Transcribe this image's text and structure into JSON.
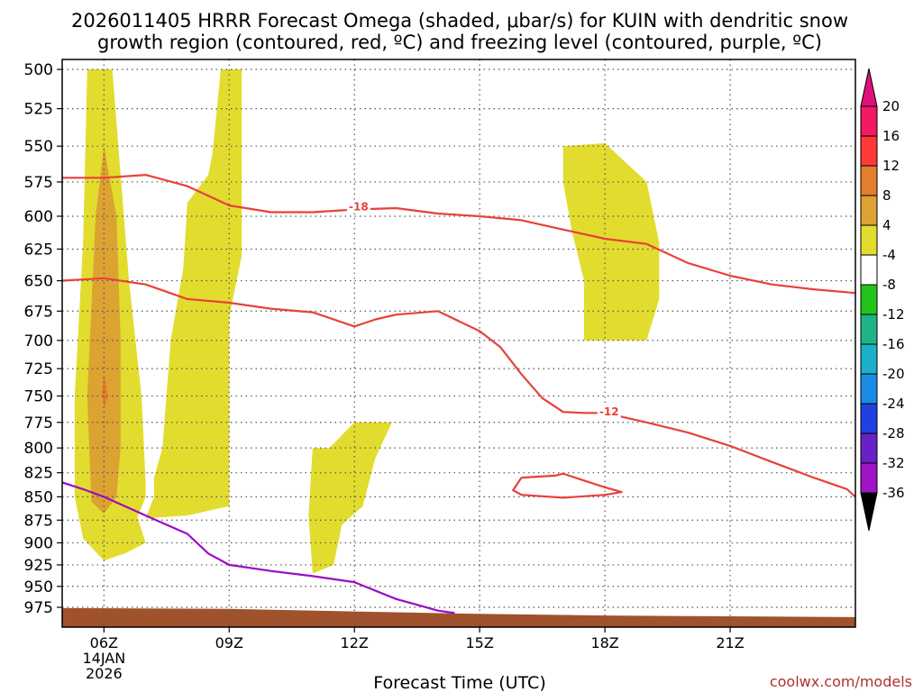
{
  "title": {
    "line1": "2026011405 HRRR Forecast Omega (shaded, μbar/s) for KUIN with dendritic snow",
    "line2": "growth region (contoured, red, ºC) and freezing level (contoured, purple, ºC)"
  },
  "credit": "coolwx.com/models",
  "colors": {
    "omega_4_8": "#e2dc2e",
    "omega_8_12": "#dca232",
    "omega_12_16": "#e47d2c",
    "dgz_contour": "#e8413a",
    "freezing_level": "#9a0ac8",
    "terrain": "#a0522d",
    "grid": "#555555"
  },
  "chart_data": {
    "type": "cross-section",
    "xlabel": "Forecast Time (UTC)",
    "ylabel": "",
    "x_domain_hours": [
      5,
      24
    ],
    "ylim_hpa": [
      500,
      988
    ],
    "y_scale": "log-pressure",
    "y_ticks": [
      500,
      525,
      550,
      575,
      600,
      625,
      650,
      675,
      700,
      725,
      750,
      775,
      800,
      825,
      850,
      875,
      900,
      925,
      950,
      975
    ],
    "x_ticks": [
      {
        "hour": 6,
        "label": "06Z",
        "sub1": "14JAN",
        "sub2": "2026"
      },
      {
        "hour": 9,
        "label": "09Z"
      },
      {
        "hour": 12,
        "label": "12Z"
      },
      {
        "hour": 15,
        "label": "15Z"
      },
      {
        "hour": 18,
        "label": "18Z"
      },
      {
        "hour": 21,
        "label": "21Z"
      }
    ],
    "grid": "dotted",
    "shaded_regions": [
      {
        "name": "omega 4-8 core-left",
        "level": "omega_4_8",
        "points": [
          [
            5.6,
            500
          ],
          [
            6.2,
            500
          ],
          [
            6.6,
            650
          ],
          [
            6.9,
            750
          ],
          [
            7.0,
            835
          ],
          [
            7.0,
            850
          ],
          [
            6.8,
            872
          ],
          [
            7.0,
            900
          ],
          [
            6.5,
            912
          ],
          [
            6.0,
            920
          ],
          [
            5.5,
            895
          ],
          [
            5.3,
            850
          ],
          [
            5.3,
            750
          ],
          [
            5.5,
            620
          ],
          [
            5.6,
            500
          ]
        ]
      },
      {
        "name": "omega 4-8 right-tower",
        "level": "omega_4_8",
        "points": [
          [
            8.8,
            500
          ],
          [
            9.3,
            500
          ],
          [
            9.3,
            630
          ],
          [
            9.0,
            680
          ],
          [
            9.0,
            860
          ],
          [
            8.0,
            870
          ],
          [
            7.0,
            873
          ],
          [
            7.2,
            850
          ],
          [
            7.2,
            830
          ],
          [
            7.4,
            800
          ],
          [
            7.6,
            700
          ],
          [
            7.9,
            640
          ],
          [
            8.0,
            590
          ],
          [
            8.5,
            570
          ],
          [
            8.6,
            555
          ],
          [
            8.8,
            500
          ]
        ]
      },
      {
        "name": "omega 8-12",
        "level": "omega_8_12",
        "points": [
          [
            6.0,
            550
          ],
          [
            6.3,
            600
          ],
          [
            6.4,
            700
          ],
          [
            6.4,
            800
          ],
          [
            6.3,
            850
          ],
          [
            6.0,
            868
          ],
          [
            5.7,
            855
          ],
          [
            5.6,
            750
          ],
          [
            5.8,
            600
          ],
          [
            6.0,
            550
          ]
        ]
      },
      {
        "name": "omega 12-16",
        "level": "omega_12_16",
        "points": [
          [
            6.0,
            730
          ],
          [
            6.1,
            750
          ],
          [
            6.0,
            762
          ],
          [
            5.95,
            745
          ],
          [
            6.0,
            730
          ]
        ]
      },
      {
        "name": "omega 4-8 mid",
        "level": "omega_4_8",
        "points": [
          [
            11.4,
            800
          ],
          [
            12.0,
            775
          ],
          [
            12.3,
            775
          ],
          [
            12.9,
            775
          ],
          [
            12.5,
            810
          ],
          [
            12.2,
            860
          ],
          [
            11.7,
            880
          ],
          [
            11.5,
            925
          ],
          [
            11.0,
            935
          ],
          [
            10.9,
            870
          ],
          [
            11.0,
            800
          ],
          [
            11.4,
            800
          ]
        ]
      },
      {
        "name": "omega 4-8 right",
        "level": "omega_4_8",
        "points": [
          [
            17.0,
            550
          ],
          [
            18.0,
            548
          ],
          [
            19.0,
            575
          ],
          [
            19.3,
            620
          ],
          [
            19.3,
            665
          ],
          [
            19.0,
            700
          ],
          [
            17.5,
            700
          ],
          [
            17.5,
            650
          ],
          [
            17.2,
            610
          ],
          [
            17.0,
            575
          ],
          [
            17.0,
            550
          ]
        ]
      }
    ],
    "series": [
      {
        "kind": "contour",
        "style": "dgz",
        "label": "-18",
        "label_at": [
          12.1,
          593
        ],
        "x": [
          5.0,
          6.0,
          7.0,
          8.0,
          9.0,
          10.0,
          11.0,
          12.0,
          13.0,
          14.0,
          15.0,
          16.0,
          17.0,
          18.0,
          19.0,
          20.0,
          21.0,
          22.0,
          23.0,
          24.0
        ],
        "y": [
          572,
          572,
          570,
          578,
          592,
          597,
          597,
          595,
          594,
          598,
          600,
          603,
          610,
          617,
          621,
          636,
          646,
          653,
          657,
          660
        ]
      },
      {
        "kind": "contour",
        "style": "dgz",
        "label": "-12",
        "label_at": [
          18.1,
          765
        ],
        "x": [
          5.0,
          6.0,
          7.0,
          8.0,
          9.0,
          10.0,
          11.0,
          12.0,
          12.5,
          13.0,
          14.0,
          15.0,
          15.5,
          16.0,
          16.5,
          17.0,
          17.5,
          18.0,
          19.0,
          20.0,
          21.0,
          22.0,
          23.0,
          23.8,
          24.0
        ],
        "y": [
          650,
          648,
          653,
          665,
          668,
          673,
          676,
          688,
          682,
          678,
          675,
          692,
          706,
          730,
          752,
          765,
          766,
          766,
          775,
          785,
          798,
          814,
          830,
          842,
          850
        ]
      },
      {
        "kind": "contour",
        "style": "dgz",
        "label": "",
        "x": [
          16.0,
          16.8,
          17.0,
          17.5,
          18.0,
          18.4,
          18.0,
          17.0,
          16.0,
          15.8,
          16.0
        ],
        "y": [
          830,
          828,
          826,
          833,
          840,
          845,
          848,
          851,
          848,
          843,
          830
        ]
      },
      {
        "kind": "contour",
        "style": "freezing",
        "label": "",
        "x": [
          5.0,
          5.5,
          6.0,
          6.5,
          7.0,
          7.5,
          8.0,
          8.5,
          9.0,
          10.0,
          11.0,
          12.0,
          12.5,
          13.0,
          13.5,
          14.0,
          14.4
        ],
        "y": [
          835,
          842,
          850,
          860,
          870,
          880,
          890,
          912,
          925,
          932,
          938,
          945,
          955,
          965,
          972,
          979,
          982
        ]
      },
      {
        "kind": "terrain",
        "style": "terrain",
        "label": "",
        "x": [
          5.0,
          9.0,
          12.0,
          15.0,
          18.0,
          21.0,
          24.0
        ],
        "y": [
          976,
          977,
          980,
          983,
          985,
          986,
          987
        ]
      }
    ],
    "colorbar": {
      "levels": [
        {
          "label": "20",
          "color": "#f21a60"
        },
        {
          "label": "16",
          "color": "#ff3838"
        },
        {
          "label": "12",
          "color": "#e47d2c"
        },
        {
          "label": "8",
          "color": "#dca232"
        },
        {
          "label": "4",
          "color": "#e2dc2e"
        },
        {
          "label": "-4",
          "color": "#ffffff"
        },
        {
          "label": "-8",
          "color": "#22c41a"
        },
        {
          "label": "-12",
          "color": "#1fb486"
        },
        {
          "label": "-16",
          "color": "#1ab0c8"
        },
        {
          "label": "-20",
          "color": "#1a8ce6"
        },
        {
          "label": "-24",
          "color": "#2040e0"
        },
        {
          "label": "-28",
          "color": "#6a20c8"
        },
        {
          "label": "-32",
          "color": "#a014c8"
        },
        {
          "label": "-36",
          "color": "#a0a0a0"
        }
      ],
      "top_arrow_color": "#e0107a",
      "bottom_arrow_color": "#000000"
    }
  }
}
